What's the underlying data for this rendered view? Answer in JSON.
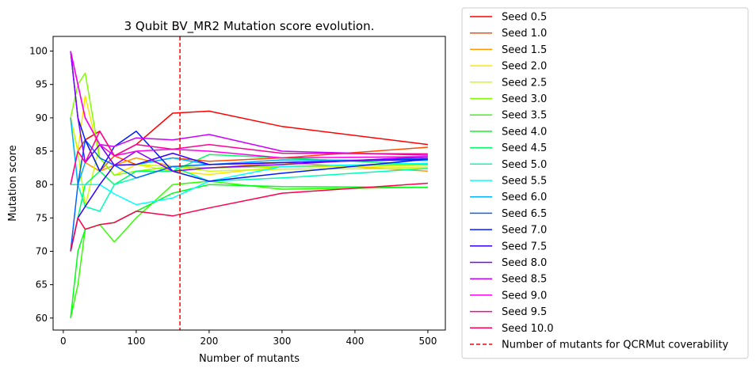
{
  "chart_data": {
    "type": "line",
    "title": "3 Qubit BV_MR2 Mutation score evolution.",
    "xlabel": "Number of mutants",
    "ylabel": "Mutation score",
    "xlim": [
      -14,
      524
    ],
    "ylim": [
      58.2,
      102.2
    ],
    "xticks": [
      0,
      100,
      200,
      300,
      400,
      500
    ],
    "yticks": [
      60,
      65,
      70,
      75,
      80,
      85,
      90,
      95,
      100
    ],
    "x": [
      10,
      20,
      30,
      50,
      70,
      100,
      150,
      200,
      300,
      500
    ],
    "grid": false,
    "legend_position": "outside-right",
    "series": [
      {
        "name": "Seed 0.5",
        "color": "#ff0000",
        "values": [
          80,
          80,
          86.7,
          88,
          84.3,
          86,
          90.7,
          91,
          88.7,
          86
        ]
      },
      {
        "name": "Seed 1.0",
        "color": "#ff4d00",
        "values": [
          80,
          85,
          86.7,
          82,
          84.3,
          83,
          84,
          83.5,
          84,
          85.6
        ]
      },
      {
        "name": "Seed 1.5",
        "color": "#ff9900",
        "values": [
          90,
          85,
          83.3,
          82,
          82.9,
          84,
          82.7,
          82.5,
          83.3,
          82
        ]
      },
      {
        "name": "Seed 2.0",
        "color": "#ffe600",
        "values": [
          90,
          85,
          93.3,
          84,
          81.4,
          83,
          82,
          81.5,
          82.7,
          82.6
        ]
      },
      {
        "name": "Seed 2.5",
        "color": "#ccff00",
        "values": [
          90,
          85,
          76.7,
          86,
          82.9,
          83,
          82.7,
          82,
          82.3,
          82.4
        ]
      },
      {
        "name": "Seed 3.0",
        "color": "#80ff00",
        "values": [
          90,
          95,
          96.7,
          84,
          81.4,
          82,
          82.7,
          82.5,
          82.7,
          83
        ]
      },
      {
        "name": "Seed 3.5",
        "color": "#33ff00",
        "values": [
          60,
          65,
          73.3,
          74,
          71.4,
          75,
          80,
          80.5,
          79.3,
          79.6
        ]
      },
      {
        "name": "Seed 4.0",
        "color": "#00ff1a",
        "values": [
          60,
          70,
          73.3,
          74,
          74.3,
          76,
          78.7,
          80,
          79.7,
          79.6
        ]
      },
      {
        "name": "Seed 4.5",
        "color": "#00ff66",
        "values": [
          70,
          75,
          80,
          82,
          80,
          82,
          82,
          84.5,
          84,
          83
        ]
      },
      {
        "name": "Seed 5.0",
        "color": "#00ffb3",
        "values": [
          80,
          80,
          76.7,
          76,
          80,
          81,
          82.7,
          80.5,
          81,
          82.4
        ]
      },
      {
        "name": "Seed 5.5",
        "color": "#00ffff",
        "values": [
          90,
          80,
          80,
          80,
          78.6,
          77,
          78,
          80.5,
          82.7,
          83.2
        ]
      },
      {
        "name": "Seed 6.0",
        "color": "#00b3ff",
        "values": [
          90,
          80,
          83.3,
          86,
          82.9,
          83,
          84,
          83,
          83.7,
          83.6
        ]
      },
      {
        "name": "Seed 6.5",
        "color": "#0066ff",
        "values": [
          70,
          80,
          86.7,
          84,
          82.9,
          81,
          82.7,
          83,
          83.3,
          84
        ]
      },
      {
        "name": "Seed 7.0",
        "color": "#001aff",
        "values": [
          100,
          90,
          86.7,
          82,
          85.7,
          88,
          82,
          80.5,
          81.7,
          83.8
        ]
      },
      {
        "name": "Seed 7.5",
        "color": "#3300ff",
        "values": [
          70,
          75,
          76.7,
          80,
          82.9,
          83,
          84.7,
          83,
          83.3,
          83.8
        ]
      },
      {
        "name": "Seed 8.0",
        "color": "#8000ff",
        "values": [
          100,
          90,
          83.3,
          86,
          82.9,
          85,
          82,
          82.5,
          83,
          84.2
        ]
      },
      {
        "name": "Seed 8.5",
        "color": "#cc00ff",
        "values": [
          100,
          95,
          90,
          86,
          85.7,
          87,
          86.7,
          87.5,
          85,
          84.4
        ]
      },
      {
        "name": "Seed 9.0",
        "color": "#ff00e6",
        "values": [
          100,
          95,
          90,
          86,
          84.3,
          85,
          85.3,
          85,
          84,
          84.2
        ]
      },
      {
        "name": "Seed 9.5",
        "color": "#ff0099",
        "values": [
          80,
          85,
          83.3,
          88,
          84.3,
          86,
          85.3,
          86,
          84.7,
          84.6
        ]
      },
      {
        "name": "Seed 10.0",
        "color": "#ff004d",
        "values": [
          70,
          75,
          73.3,
          74,
          74.3,
          76,
          75.3,
          76.5,
          78.7,
          80.2
        ]
      }
    ],
    "vline": {
      "name": "Number of mutants for QCRMut coverability",
      "x": 160,
      "color": "#ff0000",
      "style": "dashed"
    }
  }
}
